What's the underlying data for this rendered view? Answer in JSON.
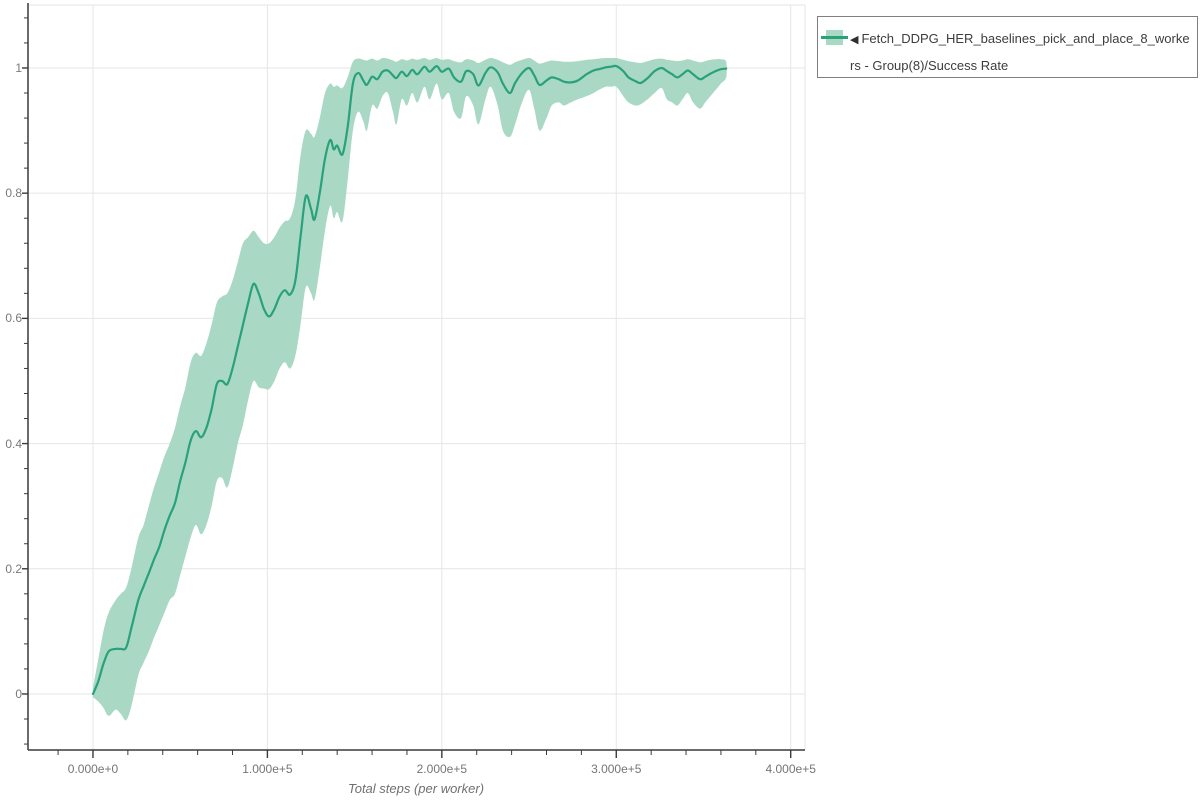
{
  "legend": {
    "marker": "◀",
    "label": "Fetch_DDPG_HER_baselines_pick_and_place_8_workers - Group(8)/Success Rate"
  },
  "colors": {
    "line": "#29a17b",
    "band": "#a9d8c5",
    "grid": "#e6e6e6",
    "axis": "#3a3a3a",
    "tick": "#3a3a3a",
    "legend_border": "#7f7f7f"
  },
  "chart_data": {
    "type": "line",
    "title": "",
    "xlabel": "Total steps (per worker)",
    "ylabel": "",
    "legend_position": "outside-top-right",
    "grid": true,
    "xlim": [
      -37250,
      408200
    ],
    "ylim": [
      -0.0895,
      1.1006
    ],
    "x_minor_step": 20000,
    "y_minor_step": 0.04,
    "x_tick_values": [
      0,
      100000,
      200000,
      300000,
      400000
    ],
    "x_tick_labels": [
      "0.000e+0",
      "1.000e+5",
      "2.000e+5",
      "3.000e+5",
      "4.000e+5"
    ],
    "y_tick_values": [
      0,
      0.2,
      0.4,
      0.6,
      0.8,
      1
    ],
    "y_tick_labels": [
      "0",
      "0.2",
      "0.4",
      "0.6",
      "0.8",
      "1"
    ],
    "series": [
      {
        "name": "Fetch_DDPG_HER_baselines_pick_and_place_8_workers - Group(8)/Success Rate",
        "x": [
          0,
          3000,
          6000,
          9000,
          13000,
          16000,
          19000,
          22000,
          26000,
          29000,
          32000,
          35000,
          38000,
          41000,
          44000,
          47000,
          50000,
          53000,
          56000,
          59000,
          62000,
          65000,
          68000,
          71000,
          74000,
          77000,
          80000,
          83000,
          86000,
          89000,
          92000,
          95000,
          98000,
          101000,
          104000,
          107000,
          110000,
          113000,
          116000,
          119000,
          122000,
          125000,
          127000,
          130000,
          133000,
          136000,
          138000,
          140000,
          143000,
          146000,
          149000,
          152000,
          155000,
          157000,
          160000,
          163000,
          166000,
          169000,
          172000,
          174000,
          177000,
          180000,
          183000,
          186000,
          190000,
          193000,
          197000,
          200000,
          204000,
          207000,
          211000,
          214000,
          218000,
          221000,
          225000,
          228000,
          232000,
          235000,
          239000,
          242000,
          246000,
          250000,
          253000,
          256000,
          260000,
          263000,
          267000,
          270000,
          274000,
          278000,
          283000,
          287000,
          290000,
          294000,
          297000,
          300000,
          304000,
          307000,
          311000,
          314000,
          318000,
          322000,
          326000,
          329000,
          332000,
          335000,
          338000,
          341000,
          344000,
          348000,
          351000,
          354000,
          357000,
          360000,
          363000
        ],
        "y": [
          0.0,
          0.02,
          0.048,
          0.068,
          0.072,
          0.072,
          0.074,
          0.105,
          0.15,
          0.172,
          0.193,
          0.215,
          0.235,
          0.262,
          0.285,
          0.305,
          0.34,
          0.37,
          0.405,
          0.42,
          0.41,
          0.425,
          0.455,
          0.495,
          0.5,
          0.495,
          0.52,
          0.555,
          0.59,
          0.625,
          0.655,
          0.64,
          0.615,
          0.603,
          0.615,
          0.635,
          0.645,
          0.638,
          0.66,
          0.73,
          0.795,
          0.775,
          0.758,
          0.8,
          0.855,
          0.885,
          0.87,
          0.876,
          0.862,
          0.905,
          0.975,
          0.992,
          0.98,
          0.973,
          0.986,
          0.982,
          0.994,
          0.996,
          0.988,
          0.984,
          0.994,
          0.987,
          0.997,
          0.99,
          1.002,
          0.994,
          1.003,
          0.994,
          0.999,
          0.985,
          0.978,
          0.995,
          0.99,
          0.972,
          0.992,
          1.001,
          0.993,
          0.975,
          0.96,
          0.976,
          0.992,
          1.0,
          0.988,
          0.973,
          0.98,
          0.985,
          0.982,
          0.978,
          0.977,
          0.98,
          0.99,
          0.996,
          0.998,
          1.001,
          1.002,
          1.003,
          0.995,
          0.985,
          0.979,
          0.976,
          0.984,
          0.995,
          1.0,
          0.995,
          0.99,
          0.985,
          0.99,
          0.996,
          0.99,
          0.982,
          0.986,
          0.991,
          0.995,
          0.998,
          0.999
        ],
        "band_low": [
          -0.005,
          -0.012,
          -0.022,
          -0.035,
          -0.025,
          -0.032,
          -0.042,
          -0.02,
          0.03,
          0.05,
          0.068,
          0.09,
          0.11,
          0.13,
          0.15,
          0.16,
          0.19,
          0.22,
          0.25,
          0.27,
          0.255,
          0.27,
          0.3,
          0.34,
          0.345,
          0.33,
          0.36,
          0.4,
          0.43,
          0.47,
          0.5,
          0.49,
          0.488,
          0.487,
          0.5,
          0.52,
          0.53,
          0.52,
          0.54,
          0.59,
          0.65,
          0.64,
          0.63,
          0.68,
          0.74,
          0.78,
          0.76,
          0.77,
          0.755,
          0.82,
          0.9,
          0.93,
          0.915,
          0.9,
          0.94,
          0.935,
          0.955,
          0.96,
          0.93,
          0.91,
          0.95,
          0.94,
          0.96,
          0.945,
          0.97,
          0.95,
          0.975,
          0.95,
          0.96,
          0.93,
          0.92,
          0.955,
          0.94,
          0.91,
          0.95,
          0.97,
          0.94,
          0.9,
          0.89,
          0.91,
          0.945,
          0.965,
          0.935,
          0.9,
          0.92,
          0.94,
          0.945,
          0.94,
          0.945,
          0.95,
          0.955,
          0.96,
          0.965,
          0.97,
          0.97,
          0.97,
          0.955,
          0.945,
          0.94,
          0.942,
          0.95,
          0.96,
          0.968,
          0.95,
          0.945,
          0.94,
          0.95,
          0.96,
          0.945,
          0.935,
          0.945,
          0.955,
          0.965,
          0.975,
          0.985
        ],
        "band_high": [
          0.01,
          0.055,
          0.1,
          0.13,
          0.15,
          0.16,
          0.17,
          0.2,
          0.25,
          0.27,
          0.3,
          0.33,
          0.355,
          0.38,
          0.4,
          0.425,
          0.46,
          0.49,
          0.53,
          0.545,
          0.54,
          0.56,
          0.59,
          0.625,
          0.635,
          0.64,
          0.66,
          0.69,
          0.72,
          0.73,
          0.74,
          0.73,
          0.72,
          0.72,
          0.73,
          0.745,
          0.755,
          0.76,
          0.79,
          0.86,
          0.9,
          0.895,
          0.89,
          0.92,
          0.96,
          0.975,
          0.97,
          0.972,
          0.968,
          0.985,
          1.01,
          1.015,
          1.013,
          1.012,
          1.015,
          1.012,
          1.016,
          1.015,
          1.012,
          1.01,
          1.014,
          1.012,
          1.015,
          1.013,
          1.016,
          1.013,
          1.016,
          1.013,
          1.014,
          1.011,
          1.009,
          1.014,
          1.012,
          1.008,
          1.013,
          1.016,
          1.013,
          1.009,
          1.005,
          1.009,
          1.013,
          1.016,
          1.012,
          1.007,
          1.01,
          1.012,
          1.011,
          1.01,
          1.01,
          1.011,
          1.013,
          1.014,
          1.015,
          1.016,
          1.016,
          1.016,
          1.013,
          1.011,
          1.009,
          1.008,
          1.011,
          1.014,
          1.015,
          1.013,
          1.012,
          1.011,
          1.012,
          1.014,
          1.012,
          1.009,
          1.011,
          1.013,
          1.014,
          1.014,
          1.01
        ]
      }
    ]
  }
}
